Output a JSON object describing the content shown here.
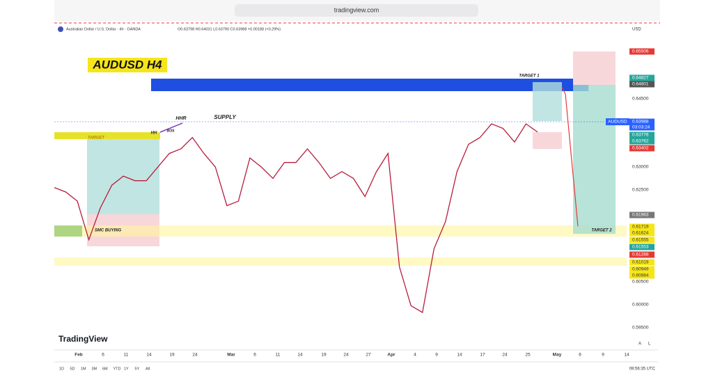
{
  "browser": {
    "url": "tradingview.com"
  },
  "header": {
    "symbol": "Australian Dollar / U.S. Dollar · 4h · OANDA",
    "ohlc": "O0.63798 H0.64031 L0.63790 C0.63988 +0.00188 (+0.29%)",
    "currency": "USD"
  },
  "chart_data": {
    "type": "line",
    "title": "AUDUSD H4",
    "series": [
      {
        "name": "AUDUSD",
        "color": "#b71c3c",
        "values": [
          0.6255,
          0.6245,
          0.6225,
          0.614,
          0.621,
          0.626,
          0.628,
          0.627,
          0.627,
          0.63,
          0.633,
          0.634,
          0.6365,
          0.633,
          0.63,
          0.6215,
          0.6225,
          0.632,
          0.63,
          0.6275,
          0.631,
          0.631,
          0.634,
          0.631,
          0.6275,
          0.629,
          0.6275,
          0.6235,
          0.629,
          0.633,
          0.608,
          0.5995,
          0.598,
          0.612,
          0.618,
          0.629,
          0.635,
          0.6365,
          0.6395,
          0.6385,
          0.6355,
          0.6395,
          0.6377
        ]
      }
    ],
    "ylim": [
      0.5902,
      0.6614
    ]
  },
  "price_labels": [
    "0.65506",
    "0.64827",
    "0.64801",
    "0.64500",
    "0.63988",
    "03:03:24",
    "0.63776",
    "0.63762",
    "0.63402",
    "0.63000",
    "0.62500",
    "0.61963",
    "0.61719",
    "0.61624",
    "0.61555",
    "0.61553",
    "0.61288",
    "0.61019",
    "0.60949",
    "0.60884",
    "0.60500",
    "0.60000",
    "0.59500"
  ],
  "symbol_tag": "AUDUSD",
  "date_labels": [
    "Feb",
    "6",
    "11",
    "14",
    "19",
    "24",
    "Mar",
    "6",
    "11",
    "14",
    "19",
    "24",
    "27",
    "Apr",
    "4",
    "9",
    "14",
    "17",
    "24",
    "25",
    "May",
    "6",
    "9",
    "14"
  ],
  "annotations": {
    "target1": "TARGET 1",
    "supply": "SUPPLY",
    "hhr": "HHR",
    "hh": "HH",
    "bos": "BOS",
    "target": "TARGET",
    "smc": "SMC BUYING",
    "target2": "TARGET 2"
  },
  "footer": {
    "logo": "TradingView",
    "ranges": [
      "1D",
      "5D",
      "1M",
      "3M",
      "6M",
      "YTD",
      "1Y",
      "5Y",
      "All"
    ],
    "clock": "09:56:35 UTC",
    "scale_a": "A",
    "scale_l": "L"
  }
}
